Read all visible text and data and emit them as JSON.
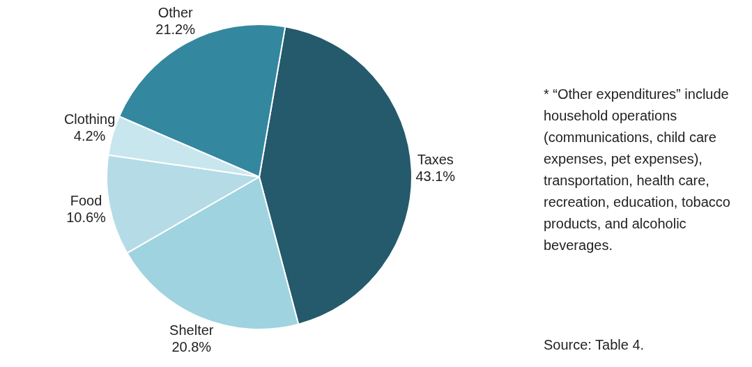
{
  "chart_data": {
    "type": "pie",
    "categories": [
      "Taxes",
      "Shelter",
      "Food",
      "Clothing",
      "Other"
    ],
    "values": [
      43.1,
      20.8,
      10.6,
      4.2,
      21.2
    ],
    "value_labels": [
      "43.1%",
      "20.8%",
      "10.6%",
      "4.2%",
      "21.2%"
    ],
    "colors": [
      "#245a6b",
      "#9fd3e0",
      "#b5dce6",
      "#c8e6ed",
      "#33879f"
    ],
    "annotations": [
      "* “Other expenditures” include household operations (communications, child care expenses, pet expenses), transportation, health care, recreation, education, tobacco products, and alcoholic beverages.",
      "Source: Table 4."
    ]
  }
}
